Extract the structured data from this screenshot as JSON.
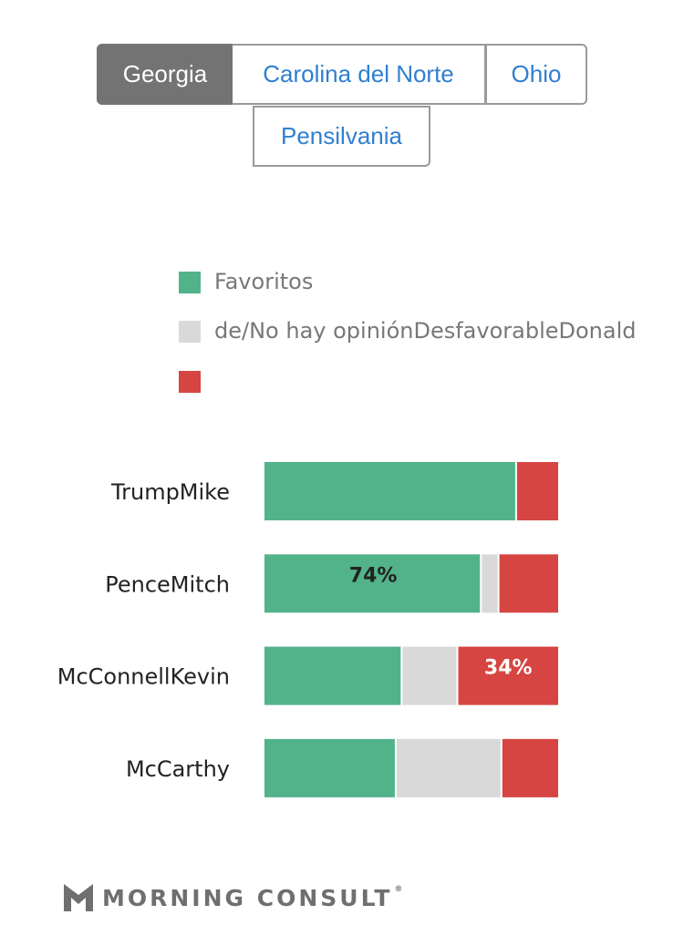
{
  "tabs": [
    {
      "label": "Georgia",
      "active": true
    },
    {
      "label": "Carolina del Norte",
      "active": false
    },
    {
      "label": "Ohio",
      "active": false
    },
    {
      "label": "Pensilvania",
      "active": false
    }
  ],
  "legend": {
    "favorable": {
      "label": "Favoritos",
      "color": "#52b38a"
    },
    "no_opinion": {
      "label": "de/No hay opiniónDesfavorableDonald",
      "color": "#d9d9d9"
    },
    "unfavorable": {
      "label": "",
      "color": "#d64541"
    }
  },
  "chart_data": {
    "type": "bar",
    "orientation": "horizontal",
    "stacked": true,
    "categories": [
      "TrumpMike",
      "PenceMitch",
      "McConnellKevin",
      "McCarthy"
    ],
    "series": [
      {
        "name": "Favoritos",
        "color": "#52b38a",
        "values": [
          86,
          74,
          47,
          45
        ]
      },
      {
        "name": "de/No hay opiniónDesfavorableDonald",
        "color": "#d9d9d9",
        "values": [
          0,
          6,
          19,
          36
        ]
      },
      {
        "name": "",
        "color": "#d64541",
        "values": [
          14,
          20,
          34,
          19
        ]
      }
    ],
    "data_labels": [
      {
        "category": "PenceMitch",
        "series": 0,
        "text": "74%",
        "color": "#222222"
      },
      {
        "category": "McConnellKevin",
        "series": 2,
        "text": "34%",
        "color": "#ffffff"
      }
    ],
    "xlim": [
      0,
      100
    ]
  },
  "brand": {
    "name": "MORNING CONSULT",
    "reg": "®"
  }
}
